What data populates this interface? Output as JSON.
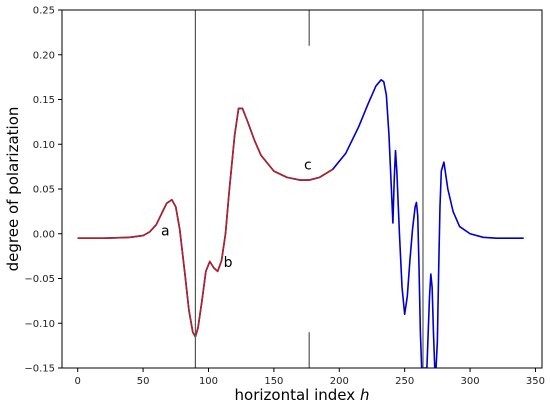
{
  "chart_data": {
    "type": "line",
    "title": "",
    "xlabel": "horizontal index",
    "xlabel_var": "h",
    "ylabel": "degree of polarization",
    "xlim": [
      -12,
      355
    ],
    "ylim": [
      -0.15,
      0.25
    ],
    "xticks": [
      0,
      50,
      100,
      150,
      200,
      250,
      300,
      350
    ],
    "yticks": [
      -0.15,
      -0.1,
      -0.05,
      0.0,
      0.05,
      0.1,
      0.15,
      0.2,
      0.25
    ],
    "grid": false,
    "vertical_lines": [
      {
        "x": 90,
        "y_from": -0.15,
        "y_to": 0.25
      },
      {
        "x": 177,
        "y_from": 0.21,
        "y_to": 0.25
      },
      {
        "x": 177,
        "y_from": -0.15,
        "y_to": -0.11
      },
      {
        "x": 264,
        "y_from": -0.15,
        "y_to": 0.25
      }
    ],
    "annotations": [
      {
        "text": "a",
        "x": 67,
        "y": -0.002
      },
      {
        "text": "b",
        "x": 115,
        "y": -0.037
      },
      {
        "text": "c",
        "x": 176,
        "y": 0.072
      }
    ],
    "series": [
      {
        "color": "#0000cc",
        "x": [
          0,
          20,
          40,
          50,
          55,
          60,
          65,
          68,
          72,
          75,
          78,
          82,
          85,
          88,
          90,
          92,
          95,
          98,
          101,
          104,
          107,
          110,
          113,
          116,
          120,
          123,
          126,
          130,
          135,
          140,
          150,
          160,
          170,
          177,
          185,
          195,
          205,
          215,
          222,
          228,
          232,
          234,
          236,
          238,
          240,
          241,
          242,
          243,
          244,
          246,
          248,
          250,
          252,
          254,
          256,
          258,
          259,
          260,
          261,
          262,
          263,
          264,
          265,
          266,
          267,
          268,
          269,
          270,
          271,
          272,
          273,
          274,
          275,
          276,
          277,
          278,
          280,
          283,
          287,
          292,
          300,
          310,
          320,
          330,
          341
        ],
        "y": [
          -0.005,
          -0.005,
          -0.004,
          -0.002,
          0.002,
          0.01,
          0.025,
          0.034,
          0.038,
          0.03,
          0.005,
          -0.045,
          -0.085,
          -0.11,
          -0.115,
          -0.105,
          -0.075,
          -0.042,
          -0.031,
          -0.038,
          -0.042,
          -0.03,
          0.0,
          0.05,
          0.11,
          0.14,
          0.14,
          0.125,
          0.105,
          0.088,
          0.07,
          0.063,
          0.06,
          0.06,
          0.063,
          0.072,
          0.09,
          0.12,
          0.145,
          0.165,
          0.172,
          0.17,
          0.155,
          0.11,
          0.045,
          0.012,
          0.06,
          0.093,
          0.07,
          0.0,
          -0.06,
          -0.09,
          -0.07,
          -0.03,
          0.005,
          0.03,
          0.035,
          0.02,
          -0.04,
          -0.11,
          -0.15,
          -0.15,
          -0.15,
          -0.15,
          -0.15,
          -0.11,
          -0.07,
          -0.045,
          -0.06,
          -0.11,
          -0.15,
          -0.15,
          -0.12,
          -0.04,
          0.03,
          0.07,
          0.08,
          0.05,
          0.025,
          0.008,
          0.0,
          -0.004,
          -0.005,
          -0.005,
          -0.005
        ]
      },
      {
        "color": "#b22222",
        "x": [
          0,
          20,
          40,
          50,
          55,
          60,
          65,
          68,
          72,
          75,
          78,
          82,
          85,
          88,
          90,
          92,
          95,
          98,
          101,
          104,
          107,
          110,
          113,
          116,
          120,
          123,
          126,
          130,
          135,
          140,
          150,
          160,
          170,
          177,
          185,
          195
        ],
        "y": [
          -0.005,
          -0.005,
          -0.004,
          -0.002,
          0.002,
          0.01,
          0.025,
          0.034,
          0.038,
          0.03,
          0.005,
          -0.045,
          -0.085,
          -0.11,
          -0.115,
          -0.105,
          -0.075,
          -0.042,
          -0.031,
          -0.038,
          -0.042,
          -0.03,
          0.0,
          0.05,
          0.11,
          0.14,
          0.14,
          0.125,
          0.105,
          0.088,
          0.07,
          0.063,
          0.06,
          0.06,
          0.063,
          0.072
        ]
      }
    ]
  }
}
